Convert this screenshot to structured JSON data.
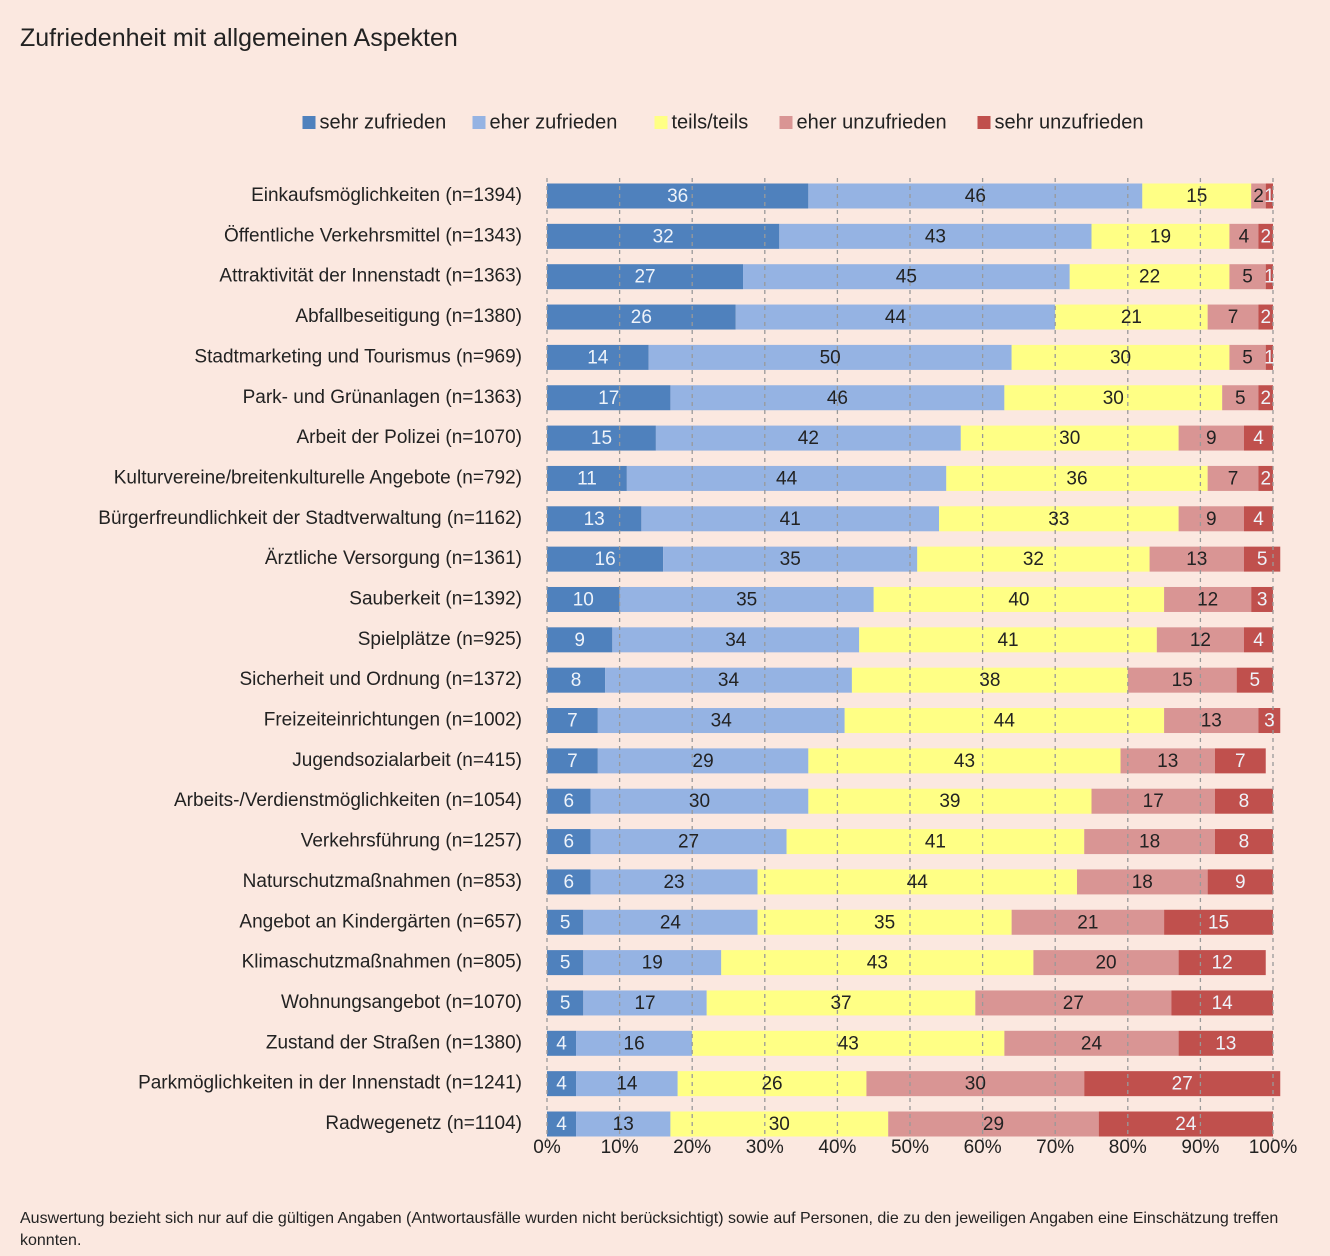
{
  "chart_data": {
    "type": "stacked_barh",
    "title": "Zufriedenheit mit allgemeinen Aspekten",
    "note": "Auswertung bezieht sich nur auf die gültigen Angaben (Antwortausfälle wurden nicht berücksichtigt) sowie auf Personen, die zu den jeweiligen Angaben eine Einschätzung treffen konnten.",
    "categories": [
      "Einkaufsmöglichkeiten (n=1394)",
      "Öffentliche Verkehrsmittel (n=1343)",
      "Attraktivität der Innenstadt (n=1363)",
      "Abfallbeseitigung (n=1380)",
      "Stadtmarketing und Tourismus (n=969)",
      "Park- und Grünanlagen (n=1363)",
      "Arbeit der Polizei (n=1070)",
      "Kulturvereine/breitenkulturelle Angebote (n=792)",
      "Bürgerfreundlichkeit der Stadtverwaltung (n=1162)",
      "Ärztliche Versorgung (n=1361)",
      "Sauberkeit (n=1392)",
      "Spielplätze (n=925)",
      "Sicherheit und Ordnung (n=1372)",
      "Freizeiteinrichtungen (n=1002)",
      "Jugendsozialarbeit (n=415)",
      "Arbeits-/Verdienstmöglichkeiten (n=1054)",
      "Verkehrsführung (n=1257)",
      "Naturschutzmaßnahmen (n=853)",
      "Angebot an Kindergärten (n=657)",
      "Klimaschutzmaßnahmen (n=805)",
      "Wohnungsangebot (n=1070)",
      "Zustand der Straßen (n=1380)",
      "Parkmöglichkeiten in der Innenstadt (n=1241)",
      "Radwegenetz (n=1104)"
    ],
    "series": [
      {
        "name": "sehr zufrieden",
        "color": "#4f81bd",
        "values": [
          36,
          32,
          27,
          26,
          14,
          17,
          15,
          11,
          13,
          16,
          10,
          9,
          8,
          7,
          7,
          6,
          6,
          6,
          5,
          5,
          5,
          4,
          4,
          4
        ]
      },
      {
        "name": "eher zufrieden",
        "color": "#95b3e3",
        "values": [
          46,
          43,
          45,
          44,
          50,
          46,
          42,
          44,
          41,
          35,
          35,
          34,
          34,
          34,
          29,
          30,
          27,
          23,
          24,
          19,
          17,
          16,
          14,
          13
        ]
      },
      {
        "name": "teils/teils",
        "color": "#ffff85",
        "values": [
          15,
          19,
          22,
          21,
          30,
          30,
          30,
          36,
          33,
          32,
          40,
          41,
          38,
          44,
          43,
          39,
          41,
          44,
          35,
          43,
          37,
          43,
          26,
          30
        ]
      },
      {
        "name": "eher unzufrieden",
        "color": "#d99594",
        "values": [
          2,
          4,
          5,
          7,
          5,
          5,
          9,
          7,
          9,
          13,
          12,
          12,
          15,
          13,
          13,
          17,
          18,
          18,
          21,
          20,
          27,
          24,
          30,
          29
        ]
      },
      {
        "name": "sehr unzufrieden",
        "color": "#c0504d",
        "values": [
          1,
          2,
          1,
          2,
          1,
          2,
          4,
          2,
          4,
          5,
          3,
          4,
          5,
          3,
          7,
          8,
          8,
          9,
          15,
          12,
          14,
          13,
          27,
          24
        ]
      }
    ],
    "xlim": [
      0,
      100
    ],
    "xticks": [
      {
        "value": 0,
        "label": "0%"
      },
      {
        "value": 10,
        "label": "10%"
      },
      {
        "value": 20,
        "label": "20%"
      },
      {
        "value": 30,
        "label": "30%"
      },
      {
        "value": 40,
        "label": "40%"
      },
      {
        "value": 50,
        "label": "50%"
      },
      {
        "value": 60,
        "label": "60%"
      },
      {
        "value": 70,
        "label": "70%"
      },
      {
        "value": 80,
        "label": "80%"
      },
      {
        "value": 90,
        "label": "90%"
      },
      {
        "value": 100,
        "label": "100%"
      }
    ],
    "grid": true,
    "legend": "top"
  }
}
